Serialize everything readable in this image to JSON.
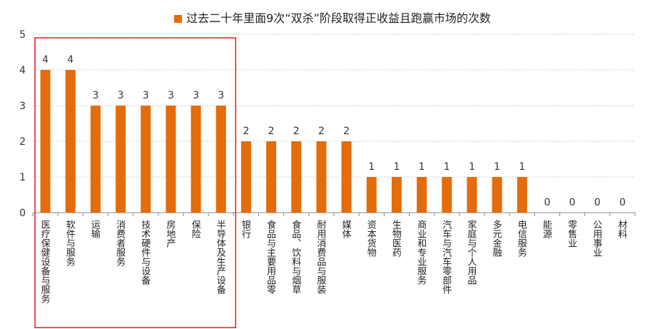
{
  "chart_data": {
    "type": "bar",
    "legend": "过去二十年里面9次“双杀”阶段取得正收益且跑赢市场的次数",
    "legend_position": "top",
    "categories": [
      "医疗保健设备与服务",
      "软件与服务",
      "运输",
      "消费者服务",
      "技术硬件与设备",
      "房地产",
      "保险",
      "半导体及生产设备",
      "银行",
      "食品与主要用品零",
      "食品、饮料与烟草",
      "耐用消费品与服装",
      "媒体",
      "资本货物",
      "生物医药",
      "商业和专业服务",
      "汽车与汽车零部件",
      "家庭与个人用品",
      "多元金融",
      "电信服务",
      "能源",
      "零售业",
      "公用事业",
      "材料"
    ],
    "values": [
      4,
      4,
      3,
      3,
      3,
      3,
      3,
      3,
      2,
      2,
      2,
      2,
      2,
      1,
      1,
      1,
      1,
      1,
      1,
      1,
      0,
      0,
      0,
      0
    ],
    "ylim": [
      0,
      5
    ],
    "yticks": [
      0,
      1,
      2,
      3,
      4,
      5
    ],
    "grid": true,
    "bar_color": "#E46C0A",
    "highlight_box_color": "#E8171F",
    "highlight_categories": [
      "医疗保健设备与服务",
      "软件与服务",
      "运输",
      "消费者服务",
      "技术硬件与设备",
      "房地产",
      "保险",
      "半导体及生产设备"
    ]
  }
}
